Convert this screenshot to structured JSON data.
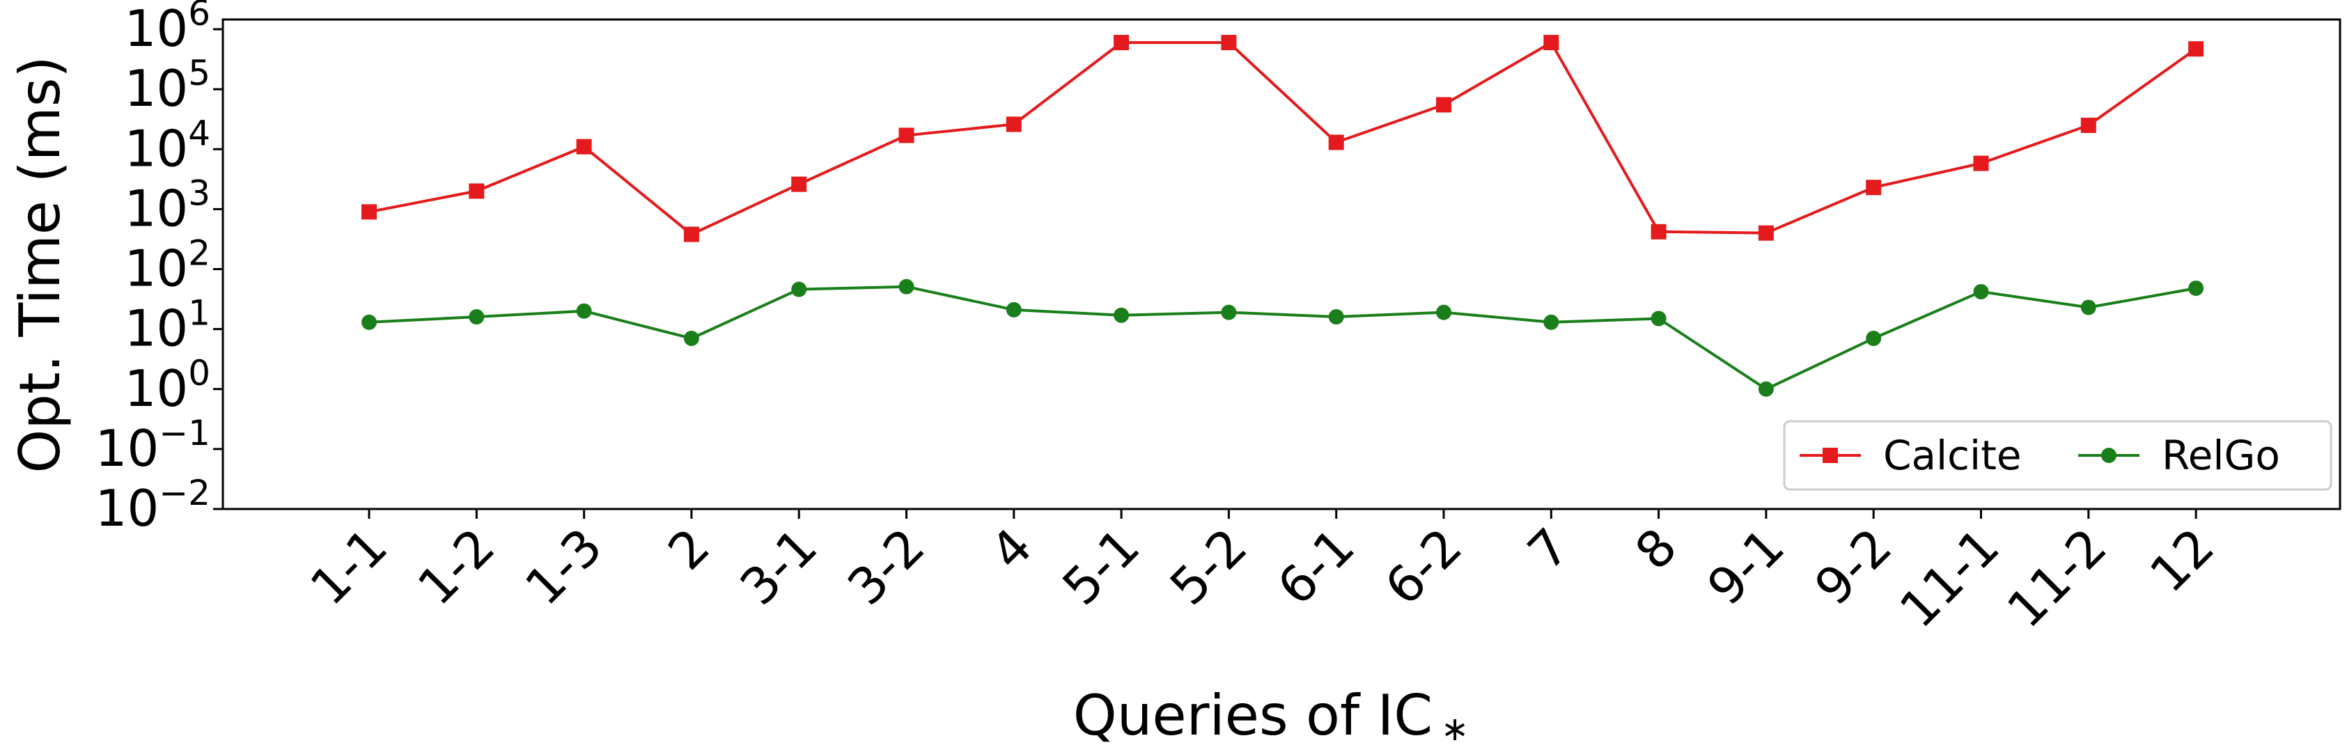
{
  "chart_data": {
    "type": "line",
    "xlabel": "Queries of IC",
    "xlabel_suffix": "∗",
    "ylabel": "Opt. Time (ms)",
    "yscale": "log",
    "ylim": [
      0.01,
      1000000
    ],
    "yticks": [
      {
        "exp": "−2",
        "value": 0.01
      },
      {
        "exp": "−1",
        "value": 0.1
      },
      {
        "exp": "0",
        "value": 1
      },
      {
        "exp": "1",
        "value": 10
      },
      {
        "exp": "2",
        "value": 100
      },
      {
        "exp": "3",
        "value": 1000
      },
      {
        "exp": "4",
        "value": 10000
      },
      {
        "exp": "5",
        "value": 100000
      },
      {
        "exp": "6",
        "value": 1000000
      }
    ],
    "ytick_base": "10",
    "categories": [
      "1-1",
      "1-2",
      "1-3",
      "2",
      "3-1",
      "3-2",
      "4",
      "5-1",
      "5-2",
      "6-1",
      "6-2",
      "7",
      "8",
      "9-1",
      "9-2",
      "11-1",
      "11-2",
      "12"
    ],
    "grid": false,
    "legend_position": "lower-right",
    "series": [
      {
        "name": "Calcite",
        "color": "#e41a1c",
        "marker": "square",
        "values": [
          900,
          2000,
          11000,
          380,
          2600,
          17000,
          26000,
          600000,
          600000,
          13000,
          55000,
          600000,
          420,
          400,
          2300,
          5800,
          25000,
          470000
        ]
      },
      {
        "name": "RelGo",
        "color": "#1a7f1a",
        "marker": "circle",
        "values": [
          13,
          16,
          20,
          7,
          46,
          51,
          21,
          17,
          19,
          16,
          19,
          13,
          15,
          1,
          7,
          42,
          23,
          48
        ]
      }
    ]
  }
}
